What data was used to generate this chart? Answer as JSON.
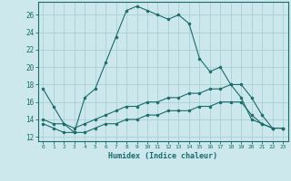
{
  "xlabel": "Humidex (Indice chaleur)",
  "xlim": [
    -0.5,
    23.5
  ],
  "ylim": [
    11.5,
    27.5
  ],
  "xticks": [
    0,
    1,
    2,
    3,
    4,
    5,
    6,
    7,
    8,
    9,
    10,
    11,
    12,
    13,
    14,
    15,
    16,
    17,
    18,
    19,
    20,
    21,
    22,
    23
  ],
  "yticks": [
    12,
    14,
    16,
    18,
    20,
    22,
    24,
    26
  ],
  "bg_color": "#cce8ec",
  "grid_color": "#aacfd6",
  "line_color": "#1a6b6b",
  "line1_x": [
    0,
    1,
    2,
    3,
    4,
    5,
    6,
    7,
    8,
    9,
    10,
    11,
    12,
    13,
    14,
    15,
    16,
    17,
    18,
    19,
    20,
    21,
    22,
    23
  ],
  "line1_y": [
    17.5,
    15.5,
    13.5,
    12.5,
    16.5,
    17.5,
    20.5,
    23.5,
    26.5,
    27.0,
    26.5,
    26.0,
    25.5,
    26.0,
    25.0,
    21.0,
    19.5,
    20.0,
    18.0,
    16.5,
    14.0,
    13.5,
    13.0,
    13.0
  ],
  "line2_x": [
    0,
    1,
    2,
    3,
    4,
    5,
    6,
    7,
    8,
    9,
    10,
    11,
    12,
    13,
    14,
    15,
    16,
    17,
    18,
    19,
    20,
    21,
    22,
    23
  ],
  "line2_y": [
    14.0,
    13.5,
    13.5,
    13.0,
    13.5,
    14.0,
    14.5,
    15.0,
    15.5,
    15.5,
    16.0,
    16.0,
    16.5,
    16.5,
    17.0,
    17.0,
    17.5,
    17.5,
    18.0,
    18.0,
    16.5,
    14.5,
    13.0,
    13.0
  ],
  "line3_x": [
    0,
    1,
    2,
    3,
    4,
    5,
    6,
    7,
    8,
    9,
    10,
    11,
    12,
    13,
    14,
    15,
    16,
    17,
    18,
    19,
    20,
    21,
    22,
    23
  ],
  "line3_y": [
    13.5,
    13.0,
    12.5,
    12.5,
    12.5,
    13.0,
    13.5,
    13.5,
    14.0,
    14.0,
    14.5,
    14.5,
    15.0,
    15.0,
    15.0,
    15.5,
    15.5,
    16.0,
    16.0,
    16.0,
    14.5,
    13.5,
    13.0,
    13.0
  ]
}
